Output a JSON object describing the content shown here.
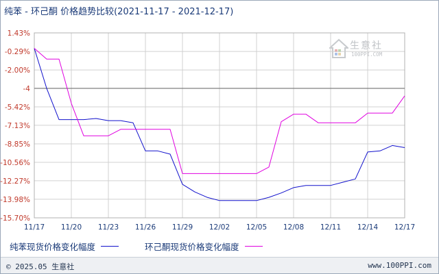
{
  "title": "纯苯 - 环己酮 价格趋势比较",
  "date_range": "(2021-11-17 - 2021-12-17)",
  "watermark": {
    "name": "生意社",
    "url": "100PPI.COM"
  },
  "footer": {
    "copyright": "© 2025.05 生意社",
    "site": "www.100PPI.com"
  },
  "colors": {
    "series1": "#1010cc",
    "series2": "#e000e0",
    "grid": "#d0d0d0",
    "ref_line": "#7f7f7f",
    "axis_label": "#c0392b",
    "xtick": "#1a3a78"
  },
  "chart_data": {
    "type": "line",
    "title": "纯苯 - 环己酮 价格趋势比较",
    "ylim": [
      -15.7,
      1.43
    ],
    "y_ticks": [
      "1.43%",
      "-0.29%",
      "-2.00%",
      "-4",
      "-5.42%",
      "-7.13%",
      "-8.85%",
      "-10.56%",
      "-12.27%",
      "-13.98%",
      "-15.70%"
    ],
    "y_tick_values": [
      1.43,
      -0.29,
      -2.0,
      -3.71,
      -5.42,
      -7.13,
      -8.85,
      -10.56,
      -12.27,
      -13.98,
      -15.7
    ],
    "reference_line": -3.71,
    "x_labels": [
      "11/17",
      "11/20",
      "11/23",
      "11/26",
      "11/29",
      "12/02",
      "12/05",
      "12/08",
      "12/11",
      "12/14",
      "12/17"
    ],
    "x": [
      "11/17",
      "11/18",
      "11/19",
      "11/20",
      "11/21",
      "11/22",
      "11/23",
      "11/24",
      "11/25",
      "11/26",
      "11/27",
      "11/28",
      "11/29",
      "11/30",
      "12/01",
      "12/02",
      "12/03",
      "12/04",
      "12/05",
      "12/06",
      "12/07",
      "12/08",
      "12/09",
      "12/10",
      "12/11",
      "12/12",
      "12/13",
      "12/14",
      "12/15",
      "12/16",
      "12/17"
    ],
    "series": [
      {
        "name": "纯苯现货价格变化幅度",
        "values": [
          0,
          -3.7,
          -6.6,
          -6.6,
          -6.6,
          -6.5,
          -6.7,
          -6.7,
          -6.9,
          -9.5,
          -9.5,
          -9.8,
          -12.6,
          -13.3,
          -13.8,
          -14.1,
          -14.1,
          -14.1,
          -14.1,
          -13.8,
          -13.4,
          -12.9,
          -12.7,
          -12.7,
          -12.7,
          -12.4,
          -12.1,
          -9.6,
          -9.5,
          -9.0,
          -9.2
        ]
      },
      {
        "name": "环己酮现货价格变化幅度",
        "values": [
          0,
          -1.0,
          -1.0,
          -5.1,
          -8.1,
          -8.1,
          -8.1,
          -7.5,
          -7.5,
          -7.5,
          -7.5,
          -7.5,
          -11.6,
          -11.6,
          -11.6,
          -11.6,
          -11.6,
          -11.6,
          -11.6,
          -11.0,
          -6.8,
          -6.1,
          -6.1,
          -6.9,
          -6.9,
          -6.9,
          -6.9,
          -6.0,
          -6.0,
          -6.0,
          -4.4
        ]
      }
    ]
  }
}
